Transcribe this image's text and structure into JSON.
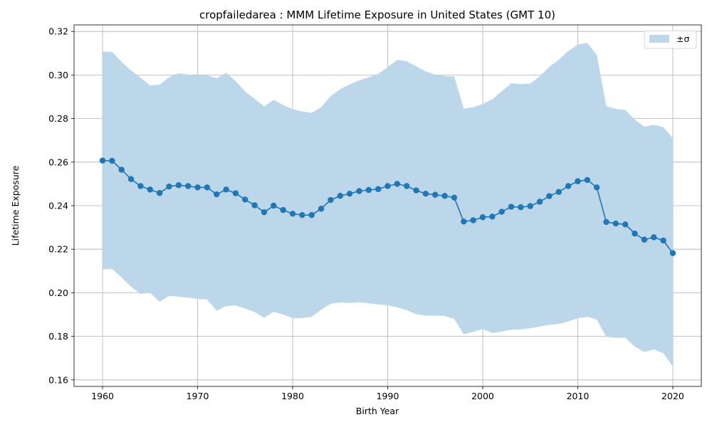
{
  "chart_data": {
    "type": "line",
    "title": "cropfailedarea : MMM Lifetime Exposure in United States (GMT 10)",
    "xlabel": "Birth Year",
    "ylabel": "Lifetime Exposure",
    "xlim": [
      1957,
      2023
    ],
    "ylim": [
      0.157,
      0.323
    ],
    "xticks": [
      1960,
      1970,
      1980,
      1990,
      2000,
      2010,
      2020
    ],
    "yticks": [
      0.16,
      0.18,
      0.2,
      0.22,
      0.24,
      0.26,
      0.28,
      0.3,
      0.32
    ],
    "ytick_labels": [
      "0.16",
      "0.18",
      "0.20",
      "0.22",
      "0.24",
      "0.26",
      "0.28",
      "0.30",
      "0.32"
    ],
    "grid": true,
    "legend": {
      "placement": "top-right",
      "entries": [
        "±σ"
      ]
    },
    "colors": {
      "line": "#1f77b4",
      "band": "#bcd6ea"
    },
    "x": [
      1960,
      1961,
      1962,
      1963,
      1964,
      1965,
      1966,
      1967,
      1968,
      1969,
      1970,
      1971,
      1972,
      1973,
      1974,
      1975,
      1976,
      1977,
      1978,
      1979,
      1980,
      1981,
      1982,
      1983,
      1984,
      1985,
      1986,
      1987,
      1988,
      1989,
      1990,
      1991,
      1992,
      1993,
      1994,
      1995,
      1996,
      1997,
      1998,
      1999,
      2000,
      2001,
      2002,
      2003,
      2004,
      2005,
      2006,
      2007,
      2008,
      2009,
      2010,
      2011,
      2012,
      2013,
      2014,
      2015,
      2016,
      2017,
      2018,
      2019,
      2020
    ],
    "series": [
      {
        "values": [
          0.2607,
          0.2606,
          0.2565,
          0.2522,
          0.249,
          0.2474,
          0.2458,
          0.2488,
          0.2494,
          0.249,
          0.2484,
          0.2484,
          0.2452,
          0.2474,
          0.2457,
          0.2428,
          0.2402,
          0.237,
          0.24,
          0.238,
          0.2363,
          0.2357,
          0.2357,
          0.2386,
          0.2426,
          0.2445,
          0.2455,
          0.2467,
          0.2472,
          0.2476,
          0.249,
          0.25,
          0.249,
          0.247,
          0.2455,
          0.245,
          0.2445,
          0.2437,
          0.2327,
          0.2333,
          0.2347,
          0.235,
          0.2372,
          0.2395,
          0.2393,
          0.2398,
          0.2418,
          0.2444,
          0.2463,
          0.249,
          0.2512,
          0.2518,
          0.2484,
          0.2325,
          0.2318,
          0.2314,
          0.2272,
          0.2244,
          0.2255,
          0.224,
          0.2182
        ]
      }
    ],
    "band": {
      "name": "±σ",
      "upper": [
        0.3108,
        0.3106,
        0.306,
        0.302,
        0.2988,
        0.2952,
        0.2956,
        0.299,
        0.3008,
        0.3002,
        0.2998,
        0.2999,
        0.2985,
        0.301,
        0.2972,
        0.2925,
        0.289,
        0.2856,
        0.2886,
        0.2862,
        0.2843,
        0.2833,
        0.2826,
        0.2852,
        0.2904,
        0.2935,
        0.2957,
        0.2975,
        0.299,
        0.3005,
        0.3035,
        0.307,
        0.3063,
        0.304,
        0.3016,
        0.3002,
        0.2995,
        0.2993,
        0.2845,
        0.2852,
        0.2867,
        0.2889,
        0.2925,
        0.2962,
        0.2958,
        0.2961,
        0.2993,
        0.3037,
        0.307,
        0.311,
        0.314,
        0.3147,
        0.3093,
        0.2857,
        0.2845,
        0.2839,
        0.2795,
        0.2762,
        0.2772,
        0.276,
        0.271
      ],
      "lower": [
        0.2108,
        0.211,
        0.207,
        0.2028,
        0.1995,
        0.2,
        0.1958,
        0.1986,
        0.1982,
        0.1978,
        0.1972,
        0.1969,
        0.1918,
        0.1939,
        0.1942,
        0.1928,
        0.1912,
        0.1885,
        0.1913,
        0.19,
        0.1883,
        0.1884,
        0.189,
        0.1922,
        0.195,
        0.1956,
        0.1953,
        0.1957,
        0.1952,
        0.1946,
        0.1943,
        0.1933,
        0.192,
        0.1902,
        0.1895,
        0.1895,
        0.1893,
        0.188,
        0.181,
        0.182,
        0.1834,
        0.1815,
        0.1822,
        0.183,
        0.1832,
        0.1837,
        0.1845,
        0.1853,
        0.1857,
        0.1868,
        0.1883,
        0.189,
        0.1877,
        0.1797,
        0.1794,
        0.1793,
        0.1753,
        0.1728,
        0.174,
        0.1723,
        0.166
      ]
    }
  }
}
